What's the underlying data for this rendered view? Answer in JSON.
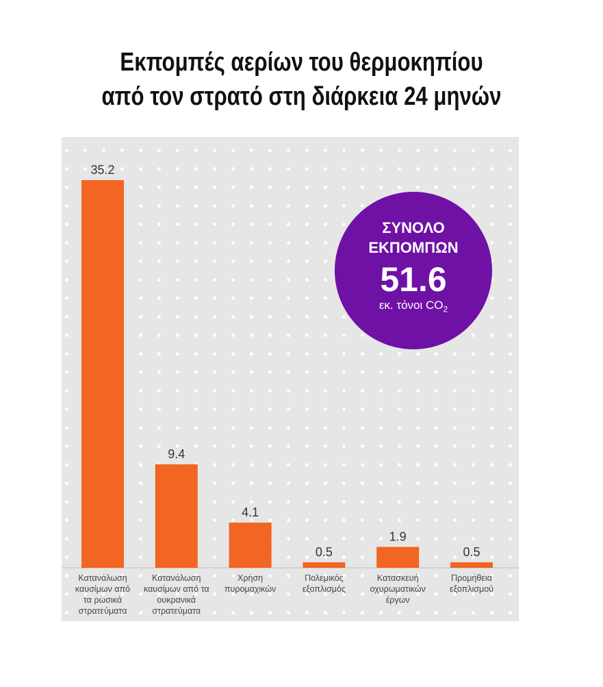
{
  "chart_data": {
    "type": "bar",
    "title": [
      "Εκπομπές αερίων του θερμοκηπίου",
      "από  τον στρατό στη διάρκεια 24 μηνών"
    ],
    "categories": [
      [
        "Κατανάλωση",
        "καυσίμων από",
        "τα ρωσικά",
        "στρατεύματα"
      ],
      [
        "Κατανάλωση",
        "καυσίμων από τα",
        "ουκρανικά",
        "στρατεύματα"
      ],
      [
        "Χρήση",
        "πυρομαχικών"
      ],
      [
        "Πολεμικός",
        "εξοπλισμός"
      ],
      [
        "Κατασκευή",
        "οχυρωματικών",
        "έργων"
      ],
      [
        "Προμήθεια",
        "εξοπλισμού"
      ]
    ],
    "values": [
      35.2,
      9.4,
      4.1,
      0.5,
      1.9,
      0.5
    ],
    "data_labels": [
      "35.2",
      "9.4",
      "4.1",
      "0.5",
      "1.9",
      "0.5"
    ],
    "ylim": [
      0,
      40
    ],
    "grid": false,
    "colors": {
      "bar": "#f26522",
      "panel": "#e6e6e6",
      "circle": "#6f11a5"
    },
    "annotation": {
      "line1": "ΣΥΝΟΛΟ",
      "line2": "ΕΚΠΟΜΠΩΝ",
      "value": "51.6",
      "unit": "εκ. τόνοι CO",
      "unit_sub": "2"
    }
  }
}
